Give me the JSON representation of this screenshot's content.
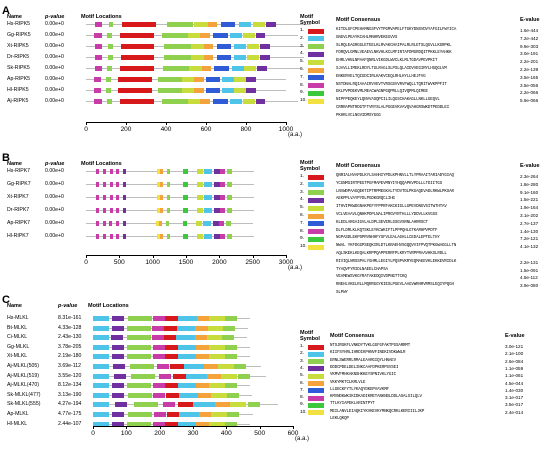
{
  "headers": {
    "name": "Name",
    "pvalue": "p-value",
    "motif_locations": "Motif Locations",
    "motif_symbol_1": "Motif",
    "motif_symbol_2": "Symbol",
    "motif_consensus": "Motif Consensus",
    "evalue": "E-value",
    "unit": "(a.a.)"
  },
  "colors": {
    "red": "#d7191c",
    "cyan": "#4dc4e8",
    "green": "#8fd14f",
    "purple": "#7030a0",
    "yellowgreen": "#c8dc3c",
    "orange": "#f4a23c",
    "blue": "#2f5cd6",
    "magenta": "#c83ca8",
    "lime": "#3cc83c",
    "yellow": "#f0e040",
    "brown": "#a0522d",
    "line": "#bdbdbd"
  },
  "panels": [
    {
      "letter": "A",
      "rows": [
        {
          "name": "Hs-RIPK5",
          "p": "0.00e+0",
          "len": 1160
        },
        {
          "name": "Gg-RIPK5",
          "p": "0.00e+0",
          "len": 1060
        },
        {
          "name": "Xt-RIPK5",
          "p": "0.00e+0",
          "len": 1090
        },
        {
          "name": "Dr-RIPK5",
          "p": "0.00e+0",
          "len": 1090
        },
        {
          "name": "Sk-RIPK5",
          "p": "0.00e+0",
          "len": 1070
        },
        {
          "name": "Ap-RIPK5",
          "p": "0.00e+0",
          "len": 1000
        },
        {
          "name": "Hl-RIPK5",
          "p": "0.00e+0",
          "len": 1000
        },
        {
          "name": "Aj-RIPK5",
          "p": "0.00e+0",
          "len": 1060
        }
      ],
      "axis_ticks": [
        "0",
        "200",
        "400",
        "600",
        "800",
        "1000"
      ],
      "motifs": [
        {
          "num": "1.",
          "color": "#d7191c",
          "consensus": "KITDLGFCPEHAMNGSFVYTPGMVAPELFTGKYDNSVDVYAFGILFWYICA",
          "evalue": "1.6e-444"
        },
        {
          "num": "2.",
          "color": "#4dc4e8",
          "consensus": "GNGVLPEAYKCAHLMNHRVEKEGVVS",
          "evalue": "7.2e-442"
        },
        {
          "num": "3.",
          "color": "#8fd14f",
          "consensus": "SLRQLEAGRGGLETEELKLRVAKCHAIPALRLRLETSLQGVLLKGRPKL",
          "evalue": "9.9e-303"
        },
        {
          "num": "4.",
          "color": "#7030a0",
          "consensus": "FDRQVLGMNLVEAEVLNKVHLKCLMFINTAFDMGRDQITPKKLEYAHKK",
          "evalue": "3.0e-191"
        },
        {
          "num": "5.",
          "color": "#c8dc3c",
          "consensus": "EHRLVHNLNPAAFQNRLVIKGDLWVCLKLMLTGDAVPEVPKIT",
          "evalue": "2.2e-201"
        },
        {
          "num": "6.",
          "color": "#f4a23c",
          "consensus": "SJAVLLIMEKLRDYLTGLRAGLSLPSLQLAIDVVEGIRYLHSQGLVM",
          "evalue": "2.2e-139"
        },
        {
          "num": "7.",
          "color": "#2f5cd6",
          "consensus": "ENKERVELTQIGDCIRLKAKVCEQLRHLHYLLHEJFVG",
          "evalue": "3.5e-165"
        },
        {
          "num": "8.",
          "color": "#c83ca8",
          "consensus": "NSTDNALRQIAAAIRVVEVTVRSGSVVRVFWQLLTQRITWVKPPFIT",
          "evalue": "3.5e-056"
        },
        {
          "num": "9.",
          "color": "#3cc83c",
          "consensus": "EKLPVPDEKVMLMEACWAGNPGQPRLLQIVQPMLQIMEE",
          "evalue": "2.2e-066"
        },
        {
          "num": "10.",
          "color": "#f0e040",
          "consensus": "NIPFPEQKEYLQNVVASQPCILILQGSCHAKAGLLNKLLGEQVL",
          "evalue": "5.9e-066"
        },
        {
          "num": "",
          "color": "",
          "consensus": "CRRRAPNTRDGTFTVRYSLALPGGEVKVAVQVAHGRSWKDTPEDDLEI",
          "evalue": ""
        },
        {
          "num": "",
          "color": "",
          "consensus": "PKHRLVCLNGVIDMSYGGG",
          "evalue": ""
        }
      ]
    },
    {
      "letter": "B",
      "rows": [
        {
          "name": "Hs-RIPK7",
          "p": "0.00e+0",
          "len": 2520
        },
        {
          "name": "Gg-RIPK7",
          "p": "0.00e+0",
          "len": 2520
        },
        {
          "name": "Xt-RIPK7",
          "p": "0.00e+0",
          "len": 2520
        },
        {
          "name": "Dr-RIPK7",
          "p": "0.00e+0",
          "len": 2520
        },
        {
          "name": "Ap-RIPK7",
          "p": "0.00e+0",
          "len": 2500
        },
        {
          "name": "Hl-RIPK7",
          "p": "0.00e+0",
          "len": 2520
        }
      ],
      "axis_ticks": [
        "0",
        "500",
        "1000",
        "1500",
        "2000",
        "2500",
        "3000"
      ],
      "motifs": [
        {
          "num": "1.",
          "color": "#d7191c",
          "consensus": "QNRIALHVAPDLKYLSAHHIYPDLKPHNVLLTLYPRAAITARIADYGIAQ",
          "evalue": "2.3e-264"
        },
        {
          "num": "2.",
          "color": "#4dc4e8",
          "consensus": "YCGNMSIRTPEGTPGFMAPEVMNYIYHQQAPKVPDLLLTDIITGS",
          "evalue": "1.8e-280"
        },
        {
          "num": "3.",
          "color": "#8fd14f",
          "consensus": "LNVWDPAAGQEKTIPTRPMEGKALTYDVTDLPKGAQEVADLRKWLPKSAR",
          "evalue": "9.1e-160"
        },
        {
          "num": "4.",
          "color": "#7030a0",
          "consensus": "AEKPPLVAYPYDLPGDKGRQCLIHG",
          "evalue": "1.5e-221"
        },
        {
          "num": "5.",
          "color": "#c8dc3c",
          "consensus": "ITHVIPKWDGNAKPEFYFPPRFAKCKIGLLGPEVDNGVSITWTHTAV",
          "evalue": "1.9e-164"
        },
        {
          "num": "6.",
          "color": "#f4a23c",
          "consensus": "VCLVEAAVLQNHKPDPLNALIPRGVYRTHLLLYDDVLLKVGSS",
          "evalue": "3.1e-202"
        },
        {
          "num": "7.",
          "color": "#2f5cd6",
          "consensus": "KLEDLARGAIGVLALDPLSEVERLSSGVSRNLAHRRSCT",
          "evalue": "2.7e-137"
        },
        {
          "num": "8.",
          "color": "#c83ca8",
          "consensus": "DLFLDRLKLKQTSKLEYKCWKIFTLPPPQHLGTKARHPVPDTF",
          "evalue": "1.4e-130"
        },
        {
          "num": "9.",
          "color": "#3cc83c",
          "consensus": "NGPASDLEKPSPRVNHHFYSFVLEALAGHLLCEDALEPTELTHY",
          "evalue": "7.2e-121"
        },
        {
          "num": "10.",
          "color": "#f0e040",
          "consensus": "NWAL YKFDGGPSEQKIRLDTLKRAEHVSGQQVVIFPVQTPKGWAGGLLTN",
          "evalue": "4.1e-132"
        },
        {
          "num": "",
          "color": "",
          "consensus": "AQLSKEKLKEQALKRPPQAPPERRFPLKRYTVRPPRAAVHKSLRDLL",
          "evalue": ""
        },
        {
          "num": "",
          "color": "",
          "consensus": "RIVIQLNRSSPALYGHMLLEGIYLPQSPVKRYEQMAEEVKLEKKEVRIDLK",
          "evalue": "2.2e-131"
        },
        {
          "num": "",
          "color": "",
          "consensus": "TYAQVFYRIDLNAEELCHAPSA",
          "evalue": "1.5e-091"
        },
        {
          "num": "",
          "color": "",
          "consensus": "VEAMEWSVKGYRATAKEDQIVDPNGTTCKQ",
          "evalue": "4.5e-112"
        },
        {
          "num": "",
          "color": "",
          "consensus": "RNEHLVKELRLLMQRRGGYKIESLPGEVLAAGVWRHRVRMSLEQIYPQGH",
          "evalue": "3.9e-080"
        },
        {
          "num": "",
          "color": "",
          "consensus": "SLPWY",
          "evalue": ""
        }
      ]
    },
    {
      "letter": "C",
      "rows": [
        {
          "name": "Hs-MLKL",
          "p": "8.31e-161",
          "len": 471
        },
        {
          "name": "Bt-MLKL",
          "p": "4.33e-128",
          "len": 465
        },
        {
          "name": "Ci-MLKL",
          "p": "2.43e-130",
          "len": 462
        },
        {
          "name": "Gg-MLKL",
          "p": "3.78e-205",
          "len": 470
        },
        {
          "name": "Xt-MLKL",
          "p": "2.19e-180",
          "len": 470
        },
        {
          "name": "Aj-MLKL(505)",
          "p": "3.69e-112",
          "len": 505
        },
        {
          "name": "Aj-MLKL(519)",
          "p": "3.55e-120",
          "len": 519
        },
        {
          "name": "Aj-MLKL(470)",
          "p": "8.12e-134",
          "len": 470
        },
        {
          "name": "Sk-MLKL(477)",
          "p": "3.13e-190",
          "len": 477
        },
        {
          "name": "Sk-MLKL(555)",
          "p": "4.27e-194",
          "len": 555
        },
        {
          "name": "Ap-MLKL",
          "p": "4.77e-175",
          "len": 480
        },
        {
          "name": "Hl-MLKL",
          "p": "2.44e-107",
          "len": 470
        }
      ],
      "axis_ticks": [
        "0",
        "100",
        "200",
        "300",
        "400",
        "500",
        "600"
      ],
      "motifs": [
        {
          "num": "1.",
          "color": "#d7191c",
          "consensus": "NTSJRSKFLVNKDYTVKLGGFGFAKTPSSARRMT",
          "evalue": "3.0e-121"
        },
        {
          "num": "2.",
          "color": "#4dc4e8",
          "consensus": "KIIFSYHRLIHRDIKPHNVFINEKIVDKWWLR",
          "evalue": "2.1e-100"
        },
        {
          "num": "3.",
          "color": "#8fd14f",
          "consensus": "ERNLSWERRLRMALEAARGIQYLHNAEV",
          "evalue": "2.6e-084"
        },
        {
          "num": "4.",
          "color": "#7030a0",
          "consensus": "DDDCPDELDELINKCAAFDPKERPSVSEI",
          "evalue": "1.1e-059"
        },
        {
          "num": "5.",
          "color": "#c8dc3c",
          "consensus": "VKMVFMHKAKNSHKKEYSPNIVKLYGIC",
          "evalue": "1.1e-061"
        },
        {
          "num": "6.",
          "color": "#f4a23c",
          "consensus": "VKKYMKTCLKMLVLE",
          "evalue": "4.5e-044"
        },
        {
          "num": "7.",
          "color": "#2f5cd6",
          "consensus": "LLGECKFYTLYKAQYDKEPVAVKMF",
          "evalue": "1.4e-030"
        },
        {
          "num": "8.",
          "color": "#c83ca8",
          "consensus": "KMVNDKWKIKIDKADIKRETANKNDLDDLASALSILQLV",
          "evalue": "3.1e-017"
        },
        {
          "num": "9.",
          "color": "#3cc83c",
          "consensus": "TTLKYIAPEKLARINTPYT",
          "evalue": "3.5e-017"
        },
        {
          "num": "10.",
          "color": "#f0e040",
          "consensus": "MEILANVLEIAQKIYKVKEVKYMNKQCRKLKERIIILJKP",
          "evalue": "2.4e-014"
        },
        {
          "num": "",
          "color": "",
          "consensus": "LEKLQKQP",
          "evalue": ""
        }
      ]
    }
  ]
}
